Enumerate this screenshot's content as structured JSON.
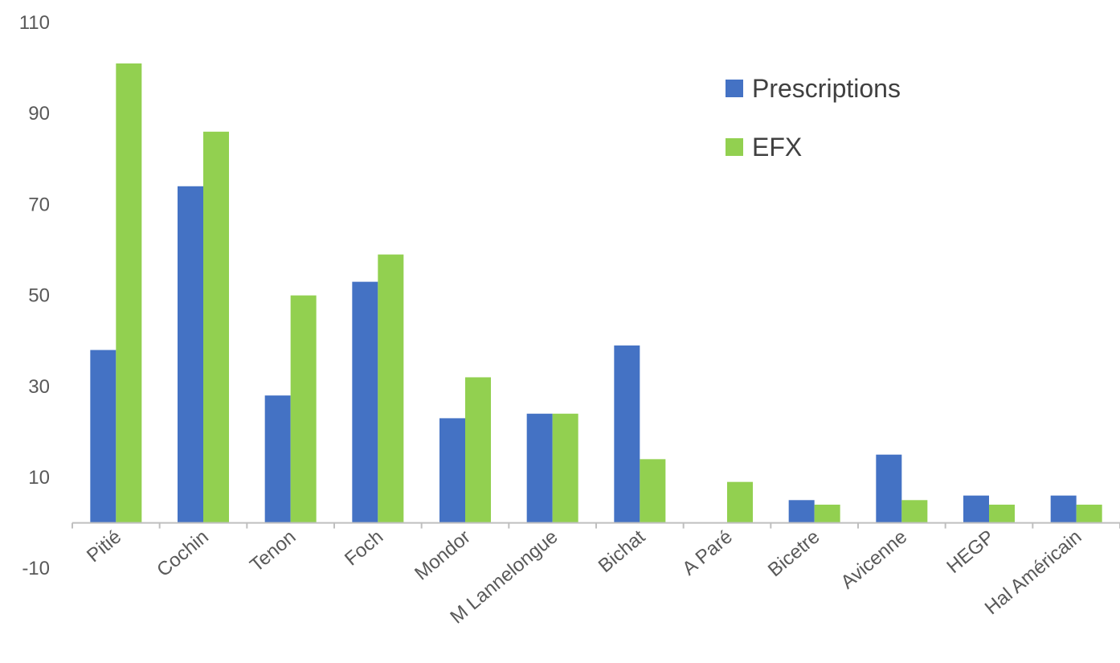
{
  "chart_data": {
    "type": "bar",
    "categories": [
      "Pitié",
      "Cochin",
      "Tenon",
      "Foch",
      "Mondor",
      "M Lannelongue",
      "Bichat",
      "A Paré",
      "Bicetre",
      "Avicenne",
      "HEGP",
      "Hal Américain"
    ],
    "series": [
      {
        "name": "Prescriptions",
        "color": "#4472C4",
        "values": [
          38,
          74,
          28,
          53,
          23,
          24,
          39,
          0,
          5,
          15,
          6,
          6
        ]
      },
      {
        "name": "EFX",
        "color": "#92D050",
        "values": [
          101,
          86,
          50,
          59,
          32,
          24,
          14,
          9,
          4,
          5,
          4,
          4
        ]
      }
    ],
    "yticks": [
      110,
      90,
      70,
      50,
      30,
      10,
      -10
    ],
    "ylim": [
      -10,
      110
    ],
    "legend": "top-right",
    "grid": false
  }
}
